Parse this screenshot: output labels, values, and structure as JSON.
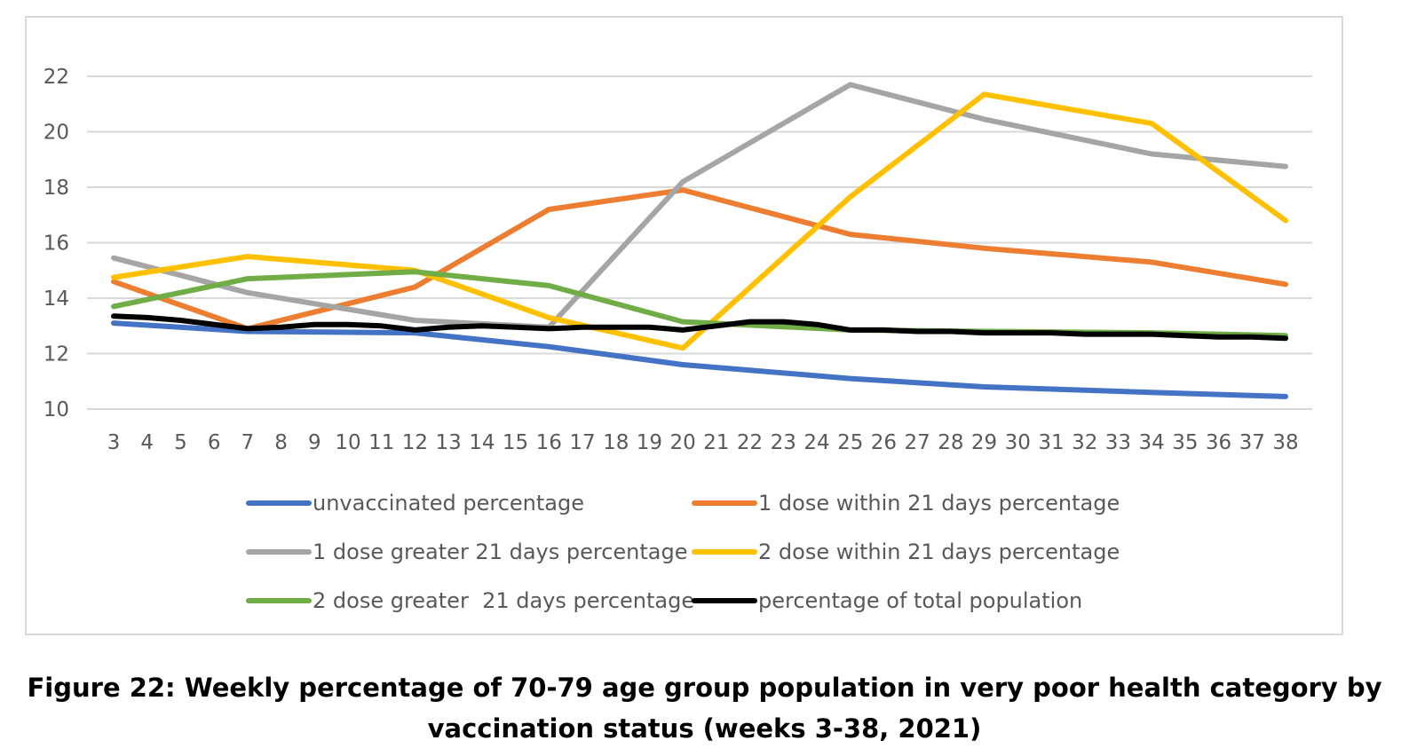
{
  "caption": {
    "line1": "Figure 22: Weekly percentage of 70-79 age group population in very poor health category by",
    "line2": "vaccination status (weeks 3-38, 2021)"
  },
  "chart_data": {
    "type": "line",
    "title": "",
    "xlabel": "",
    "ylabel": "",
    "ylim": [
      10,
      22
    ],
    "yticks": [
      10,
      12,
      14,
      16,
      18,
      20,
      22
    ],
    "x": [
      3,
      4,
      5,
      6,
      7,
      8,
      9,
      10,
      11,
      12,
      13,
      14,
      15,
      16,
      17,
      18,
      19,
      20,
      21,
      22,
      23,
      24,
      25,
      26,
      27,
      28,
      29,
      30,
      31,
      32,
      33,
      34,
      35,
      36,
      37,
      38
    ],
    "grid": true,
    "legend_position": "bottom",
    "series": [
      {
        "name": "unvaccinated percentage",
        "color": "#4472c4",
        "points": [
          [
            3,
            13.1
          ],
          [
            7,
            12.8
          ],
          [
            12,
            12.75
          ],
          [
            16,
            12.25
          ],
          [
            20,
            11.6
          ],
          [
            25,
            11.1
          ],
          [
            29,
            10.8
          ],
          [
            34,
            10.6
          ],
          [
            38,
            10.45
          ]
        ]
      },
      {
        "name": "1 dose within 21 days percentage",
        "color": "#ed7d31",
        "points": [
          [
            3,
            14.6
          ],
          [
            7,
            12.9
          ],
          [
            12,
            14.4
          ],
          [
            16,
            17.2
          ],
          [
            20,
            17.9
          ],
          [
            25,
            16.3
          ],
          [
            29,
            15.8
          ],
          [
            34,
            15.3
          ],
          [
            38,
            14.5
          ]
        ]
      },
      {
        "name": "1 dose greater 21 days percentage",
        "color": "#a5a5a5",
        "points": [
          [
            3,
            15.45
          ],
          [
            7,
            14.2
          ],
          [
            12,
            13.2
          ],
          [
            16,
            12.95
          ],
          [
            20,
            18.2
          ],
          [
            25,
            21.7
          ],
          [
            29,
            20.45
          ],
          [
            34,
            19.2
          ],
          [
            38,
            18.75
          ]
        ]
      },
      {
        "name": "2 dose within 21 days percentage",
        "color": "#ffc000",
        "points": [
          [
            3,
            14.75
          ],
          [
            7,
            15.5
          ],
          [
            12,
            15.0
          ],
          [
            16,
            13.3
          ],
          [
            20,
            12.2
          ],
          [
            25,
            17.65
          ],
          [
            29,
            21.35
          ],
          [
            34,
            20.3
          ],
          [
            38,
            16.8
          ]
        ]
      },
      {
        "name": "2 dose greater  21 days percentage",
        "color": "#70ad47",
        "points": [
          [
            3,
            13.7
          ],
          [
            7,
            14.7
          ],
          [
            12,
            14.95
          ],
          [
            16,
            14.45
          ],
          [
            20,
            13.15
          ],
          [
            25,
            12.85
          ],
          [
            29,
            12.8
          ],
          [
            34,
            12.75
          ],
          [
            38,
            12.65
          ]
        ]
      },
      {
        "name": "percentage of total population",
        "color": "#000000",
        "points": [
          [
            3,
            13.35
          ],
          [
            4,
            13.3
          ],
          [
            5,
            13.2
          ],
          [
            7,
            12.9
          ],
          [
            8,
            12.95
          ],
          [
            9,
            13.05
          ],
          [
            10,
            13.05
          ],
          [
            11,
            13.0
          ],
          [
            12,
            12.85
          ],
          [
            13,
            12.95
          ],
          [
            14,
            13.0
          ],
          [
            15,
            12.95
          ],
          [
            16,
            12.9
          ],
          [
            17,
            12.95
          ],
          [
            18,
            12.95
          ],
          [
            19,
            12.95
          ],
          [
            20,
            12.85
          ],
          [
            21,
            13.0
          ],
          [
            22,
            13.15
          ],
          [
            23,
            13.15
          ],
          [
            24,
            13.05
          ],
          [
            25,
            12.85
          ],
          [
            26,
            12.85
          ],
          [
            27,
            12.8
          ],
          [
            28,
            12.8
          ],
          [
            29,
            12.75
          ],
          [
            30,
            12.75
          ],
          [
            31,
            12.75
          ],
          [
            32,
            12.7
          ],
          [
            33,
            12.7
          ],
          [
            34,
            12.7
          ],
          [
            35,
            12.65
          ],
          [
            36,
            12.6
          ],
          [
            37,
            12.6
          ],
          [
            38,
            12.55
          ]
        ]
      }
    ]
  }
}
